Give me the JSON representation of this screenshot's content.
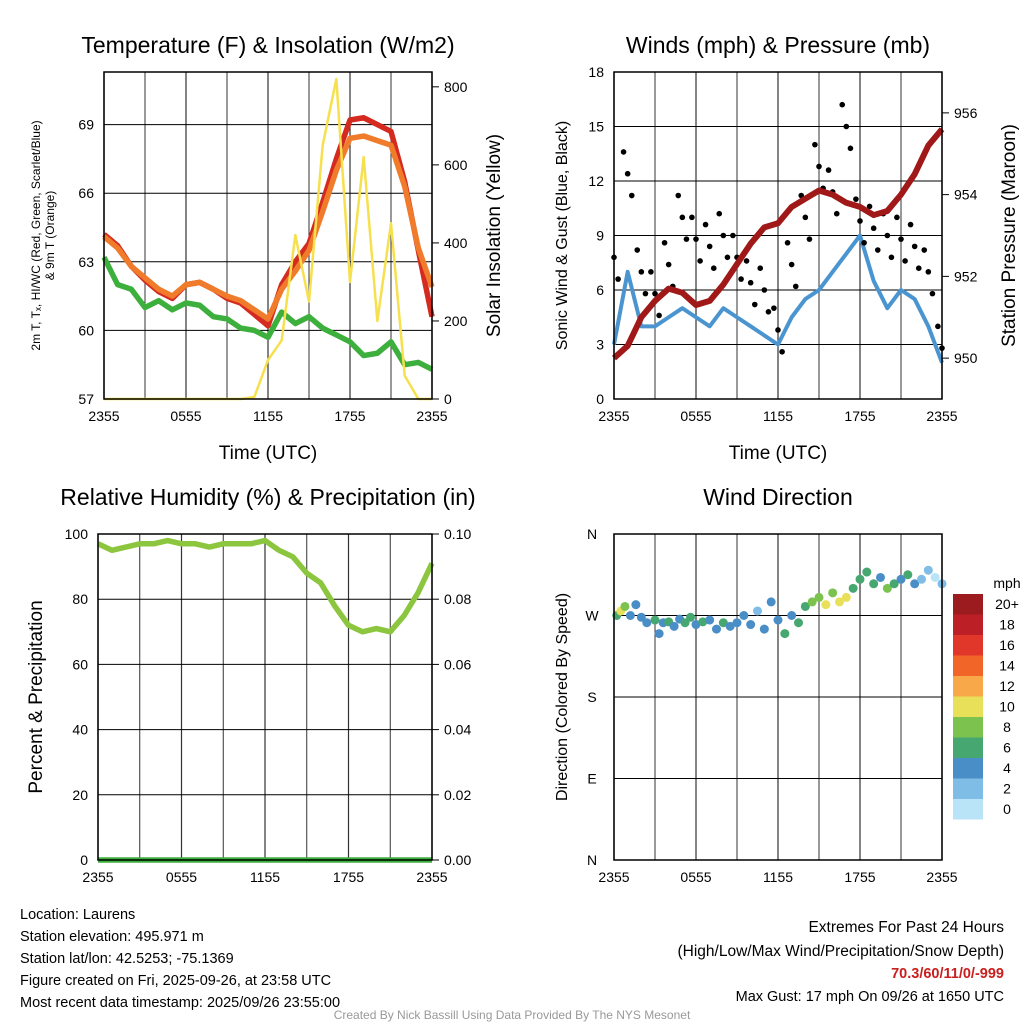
{
  "chart_data": [
    {
      "type": "line",
      "title": "Temperature (F) & Insolation (W/m2)",
      "xlabel": "Time (UTC)",
      "ylabel": "2m T, Td, HI/WC (Red, Green, Scarlet/Blue) & 9m T (Orange)",
      "ylabel_line1": "2m T, Tₓ, HI/WC (Red, Green, Scarlet/Blue)",
      "ylabel_line2": "& 9m T (Orange)",
      "y2label": "Solar Insolation (Yellow)",
      "xticks": [
        "2355",
        "0555",
        "1155",
        "1755",
        "2355"
      ],
      "yticks": [
        57,
        60,
        63,
        66,
        69
      ],
      "y2ticks": [
        0,
        200,
        400,
        600,
        800
      ],
      "ylim": [
        57,
        71.3
      ],
      "y2lim": [
        0,
        838
      ],
      "x_hours": [
        0,
        1,
        2,
        3,
        4,
        5,
        6,
        7,
        8,
        9,
        10,
        11,
        12,
        13,
        14,
        15,
        16,
        17,
        18,
        19,
        20,
        21,
        22,
        23,
        24
      ],
      "series": [
        {
          "name": "2m T",
          "color": "#d42a20",
          "axis": "left",
          "values": [
            64.2,
            63.7,
            62.8,
            62.2,
            61.7,
            61.4,
            62.0,
            62.1,
            61.8,
            61.4,
            61.2,
            60.7,
            60.2,
            62.0,
            63.0,
            63.8,
            65.6,
            67.5,
            69.2,
            69.3,
            69.0,
            68.7,
            66.5,
            63.5,
            60.6
          ]
        },
        {
          "name": "9m T",
          "color": "#f07b2a",
          "axis": "left",
          "values": [
            64.1,
            63.6,
            62.8,
            62.3,
            61.8,
            61.5,
            62.0,
            62.1,
            61.8,
            61.5,
            61.3,
            60.9,
            60.5,
            61.8,
            62.6,
            63.5,
            65.2,
            67.0,
            68.4,
            68.5,
            68.3,
            68.1,
            66.3,
            63.6,
            61.9
          ]
        },
        {
          "name": "Td",
          "color": "#3daf3d",
          "axis": "left",
          "values": [
            63.2,
            62.0,
            61.8,
            61.0,
            61.3,
            60.9,
            61.2,
            61.1,
            60.6,
            60.5,
            60.1,
            60.0,
            59.7,
            60.8,
            60.3,
            60.6,
            60.1,
            59.8,
            59.5,
            58.9,
            59.0,
            59.5,
            58.5,
            58.6,
            58.3
          ]
        },
        {
          "name": "Solar",
          "color": "#f7e04e",
          "axis": "right",
          "values": [
            0,
            0,
            0,
            0,
            0,
            0,
            0,
            0,
            0,
            0,
            0,
            5,
            100,
            150,
            420,
            250,
            650,
            820,
            300,
            620,
            200,
            450,
            60,
            0,
            0
          ]
        }
      ]
    },
    {
      "type": "line",
      "title": "Winds (mph) & Pressure (mb)",
      "xlabel": "Time (UTC)",
      "ylabel": "Sonic Wind & Gust (Blue, Black)",
      "y2label": "Station Pressure (Maroon)",
      "xticks": [
        "2355",
        "0555",
        "1155",
        "1755",
        "2355"
      ],
      "yticks": [
        0,
        3,
        6,
        9,
        12,
        15,
        18
      ],
      "y2ticks": [
        950,
        952,
        954,
        956
      ],
      "ylim": [
        0,
        18
      ],
      "y2lim": [
        949,
        957
      ],
      "x_hours": [
        0,
        1,
        2,
        3,
        4,
        5,
        6,
        7,
        8,
        9,
        10,
        11,
        12,
        13,
        14,
        15,
        16,
        17,
        18,
        19,
        20,
        21,
        22,
        23,
        24
      ],
      "series": [
        {
          "name": "Sonic Wind",
          "color": "#4a95d0",
          "axis": "left",
          "values": [
            3,
            7,
            4,
            4,
            4.5,
            5,
            4.5,
            4,
            5,
            4.5,
            4,
            3.5,
            3,
            4.5,
            5.5,
            6,
            7,
            8,
            9,
            6.5,
            5,
            6,
            5.5,
            4,
            2
          ]
        },
        {
          "name": "Gust",
          "color": "#000000",
          "axis": "left",
          "values": [
            9,
            13,
            7,
            7,
            8,
            10,
            10,
            9,
            9,
            9,
            7,
            6,
            5,
            8,
            10,
            14,
            12,
            15,
            11,
            10,
            9,
            10,
            9,
            7,
            4
          ]
        },
        {
          "name": "Pressure",
          "color": "#a01818",
          "axis": "right",
          "values": [
            950,
            950.3,
            951,
            951.4,
            951.7,
            951.6,
            951.3,
            951.4,
            951.8,
            952.3,
            952.8,
            953.2,
            953.3,
            953.7,
            953.9,
            954.1,
            954.0,
            953.8,
            953.7,
            953.5,
            953.6,
            954,
            954.5,
            955.2,
            955.6
          ]
        }
      ]
    },
    {
      "type": "line",
      "title": "Relative Humidity (%) & Precipitation (in)",
      "ylabel": "Percent & Precipitation",
      "xticks": [
        "2355",
        "0555",
        "1155",
        "1755",
        "2355"
      ],
      "yticks": [
        0,
        20,
        40,
        60,
        80,
        100
      ],
      "y2ticks": [
        "0.00",
        "0.02",
        "0.04",
        "0.06",
        "0.08",
        "0.10"
      ],
      "ylim": [
        0,
        100
      ],
      "y2lim": [
        0,
        0.1
      ],
      "x_hours": [
        0,
        1,
        2,
        3,
        4,
        5,
        6,
        7,
        8,
        9,
        10,
        11,
        12,
        13,
        14,
        15,
        16,
        17,
        18,
        19,
        20,
        21,
        22,
        23,
        24
      ],
      "series": [
        {
          "name": "RH",
          "color": "#8cc63f",
          "axis": "left",
          "values": [
            97,
            95,
            96,
            97,
            97,
            98,
            97,
            97,
            96,
            97,
            97,
            97,
            98,
            95,
            93,
            88,
            85,
            78,
            72,
            70,
            71,
            70,
            75,
            82,
            91
          ]
        },
        {
          "name": "Precipitation",
          "color": "#3daf3d",
          "axis": "right",
          "values": [
            0,
            0,
            0,
            0,
            0,
            0,
            0,
            0,
            0,
            0,
            0,
            0,
            0,
            0,
            0,
            0,
            0,
            0,
            0,
            0,
            0,
            0,
            0,
            0,
            0
          ]
        }
      ]
    },
    {
      "type": "scatter",
      "title": "Wind Direction",
      "ylabel": "Direction (Colored By Speed)",
      "xticks": [
        "2355",
        "0555",
        "1155",
        "1755",
        "2355"
      ],
      "yticks": [
        "N",
        "E",
        "S",
        "W",
        "N"
      ],
      "ylim": [
        0,
        360
      ],
      "legend": {
        "title": "mph",
        "labels": [
          "20+",
          "18",
          "16",
          "14",
          "12",
          "10",
          "8",
          "6",
          "4",
          "2",
          "0"
        ],
        "colors": [
          "#9b1b1e",
          "#bd1f27",
          "#e1362a",
          "#f26529",
          "#f8a849",
          "#e9e05a",
          "#7cc24e",
          "#46a771",
          "#4a8ec7",
          "#7fbce6",
          "#b9e3f7"
        ],
        "placement": "right"
      },
      "points": [
        [
          0.2,
          270,
          6
        ],
        [
          0.5,
          275,
          10
        ],
        [
          0.8,
          280,
          8
        ],
        [
          1.2,
          270,
          4
        ],
        [
          1.6,
          282,
          4
        ],
        [
          2,
          268,
          4
        ],
        [
          2.4,
          262,
          4
        ],
        [
          3,
          265,
          6
        ],
        [
          3.3,
          250,
          4
        ],
        [
          3.6,
          262,
          4
        ],
        [
          4,
          263,
          6
        ],
        [
          4.4,
          258,
          4
        ],
        [
          4.8,
          266,
          4
        ],
        [
          5.2,
          262,
          6
        ],
        [
          5.6,
          268,
          6
        ],
        [
          6,
          260,
          4
        ],
        [
          6.5,
          263,
          6
        ],
        [
          7,
          265,
          4
        ],
        [
          7.5,
          255,
          4
        ],
        [
          8,
          262,
          6
        ],
        [
          8.5,
          258,
          4
        ],
        [
          9,
          262,
          4
        ],
        [
          9.5,
          270,
          4
        ],
        [
          10,
          260,
          4
        ],
        [
          10.5,
          275,
          2
        ],
        [
          11,
          255,
          4
        ],
        [
          11.5,
          285,
          4
        ],
        [
          12,
          265,
          4
        ],
        [
          12.5,
          250,
          6
        ],
        [
          13,
          270,
          4
        ],
        [
          13.5,
          262,
          6
        ],
        [
          14,
          280,
          6
        ],
        [
          14.5,
          285,
          8
        ],
        [
          15,
          290,
          8
        ],
        [
          15.5,
          282,
          10
        ],
        [
          16,
          295,
          8
        ],
        [
          16.5,
          285,
          10
        ],
        [
          17,
          290,
          10
        ],
        [
          17.5,
          300,
          6
        ],
        [
          18,
          310,
          6
        ],
        [
          18.5,
          318,
          6
        ],
        [
          19,
          305,
          6
        ],
        [
          19.5,
          312,
          4
        ],
        [
          20,
          300,
          8
        ],
        [
          20.5,
          305,
          6
        ],
        [
          21,
          310,
          4
        ],
        [
          21.5,
          315,
          6
        ],
        [
          22,
          305,
          4
        ],
        [
          22.5,
          310,
          2
        ],
        [
          23,
          320,
          2
        ],
        [
          23.5,
          312,
          0
        ],
        [
          24,
          305,
          2
        ]
      ]
    }
  ],
  "footer": {
    "location": "Location: Laurens",
    "elevation": "Station elevation: 495.971 m",
    "latlon": "Station lat/lon: 42.5253; -75.1369",
    "created": "Figure created on Fri, 2025-09-26, at 23:58 UTC",
    "recent": "Most recent data timestamp: 2025/09/26 23:55:00",
    "extremes_title": "Extremes For Past 24 Hours",
    "extremes_sub": "(High/Low/Max Wind/Precipitation/Snow Depth)",
    "extremes_values": "70.3/60/11/0/-999",
    "max_gust": "Max Gust: 17 mph On 09/26 at 1650 UTC",
    "credit": "Created By Nick Bassill Using Data Provided By The NYS Mesonet"
  }
}
